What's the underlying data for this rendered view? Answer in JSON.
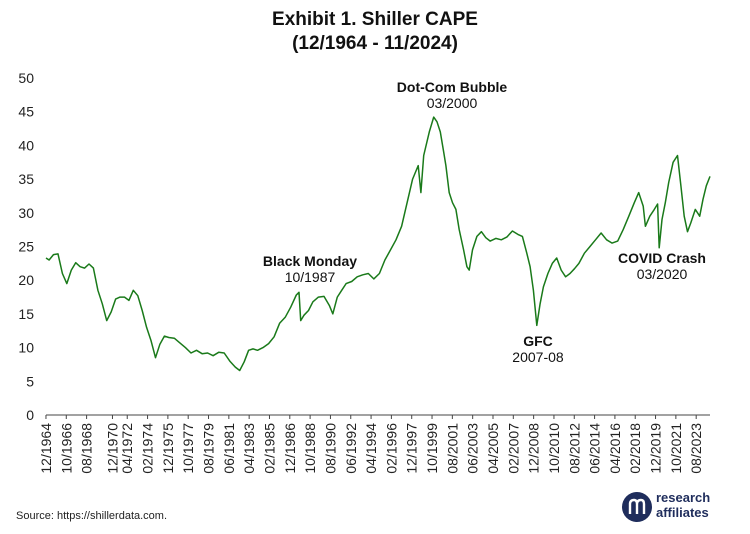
{
  "title_line1": "Exhibit 1. Shiller CAPE",
  "title_line2": "(12/1964 - 11/2024)",
  "source": "Source: https://shillerdata.com.",
  "logo": {
    "line1": "research",
    "line2": "affiliates",
    "mark": "ra-logo-icon",
    "color": "#1f2d5c"
  },
  "chart_data": {
    "type": "line",
    "title": "Exhibit 1. Shiller CAPE (12/1964 - 11/2024)",
    "xlabel": "",
    "ylabel": "",
    "ylim": [
      0,
      50
    ],
    "yticks": [
      0,
      5,
      10,
      15,
      20,
      25,
      30,
      35,
      40,
      45,
      50
    ],
    "xlim": [
      1964.92,
      2024.83
    ],
    "xtick_labels": [
      "12/1964",
      "10/1966",
      "08/1968",
      "12/1970",
      "04/1972",
      "02/1974",
      "12/1975",
      "10/1977",
      "08/1979",
      "06/1981",
      "04/1983",
      "02/1985",
      "12/1986",
      "10/1988",
      "08/1990",
      "06/1992",
      "04/1994",
      "02/1996",
      "12/1997",
      "10/1999",
      "08/2001",
      "06/2003",
      "04/2005",
      "02/2007",
      "12/2008",
      "10/2010",
      "08/2012",
      "06/2014",
      "04/2016",
      "02/2018",
      "12/2019",
      "10/2021",
      "08/2023"
    ],
    "grid": false,
    "line_color": "#1a7a1a",
    "series": [
      {
        "name": "Shiller CAPE",
        "x": [
          1964.92,
          1965.2,
          1965.6,
          1966.0,
          1966.4,
          1966.8,
          1967.2,
          1967.6,
          1968.0,
          1968.4,
          1968.8,
          1969.2,
          1969.6,
          1970.0,
          1970.4,
          1970.8,
          1971.2,
          1971.6,
          1972.0,
          1972.4,
          1972.8,
          1973.2,
          1973.6,
          1974.0,
          1974.4,
          1974.8,
          1975.2,
          1975.6,
          1976.0,
          1976.5,
          1977.0,
          1977.5,
          1978.0,
          1978.5,
          1979.0,
          1979.5,
          1980.0,
          1980.5,
          1981.0,
          1981.5,
          1982.0,
          1982.4,
          1982.8,
          1983.2,
          1983.6,
          1984.0,
          1984.5,
          1985.0,
          1985.5,
          1986.0,
          1986.5,
          1987.0,
          1987.5,
          1987.75,
          1987.9,
          1988.2,
          1988.6,
          1989.0,
          1989.5,
          1990.0,
          1990.5,
          1990.8,
          1991.2,
          1991.6,
          1992.0,
          1992.5,
          1993.0,
          1993.5,
          1994.0,
          1994.5,
          1995.0,
          1995.5,
          1996.0,
          1996.5,
          1997.0,
          1997.5,
          1998.0,
          1998.5,
          1998.75,
          1999.0,
          1999.5,
          1999.9,
          2000.2,
          2000.5,
          2000.8,
          2001.0,
          2001.3,
          2001.6,
          2001.9,
          2002.2,
          2002.6,
          2002.9,
          2003.1,
          2003.4,
          2003.8,
          2004.2,
          2004.6,
          2005.0,
          2005.5,
          2006.0,
          2006.5,
          2007.0,
          2007.5,
          2007.9,
          2008.3,
          2008.6,
          2008.9,
          2009.2,
          2009.5,
          2009.8,
          2010.2,
          2010.6,
          2011.0,
          2011.4,
          2011.8,
          2012.2,
          2012.6,
          2013.0,
          2013.5,
          2014.0,
          2014.5,
          2015.0,
          2015.5,
          2016.0,
          2016.5,
          2017.0,
          2017.5,
          2018.0,
          2018.4,
          2018.8,
          2019.0,
          2019.4,
          2019.8,
          2020.1,
          2020.25,
          2020.5,
          2020.8,
          2021.1,
          2021.5,
          2021.9,
          2022.2,
          2022.5,
          2022.8,
          2023.1,
          2023.5,
          2023.9,
          2024.2,
          2024.5,
          2024.83
        ],
        "values": [
          23.3,
          23.0,
          23.8,
          23.9,
          21.0,
          19.5,
          21.5,
          22.6,
          22.0,
          21.8,
          22.4,
          21.8,
          18.5,
          16.5,
          14.0,
          15.3,
          17.2,
          17.5,
          17.5,
          17.0,
          18.5,
          17.7,
          15.5,
          13.0,
          11.0,
          8.5,
          10.5,
          11.7,
          11.5,
          11.4,
          10.7,
          10.0,
          9.2,
          9.6,
          9.1,
          9.2,
          8.8,
          9.3,
          9.2,
          8.0,
          7.1,
          6.6,
          7.9,
          9.6,
          9.8,
          9.6,
          10.0,
          10.6,
          11.6,
          13.6,
          14.5,
          16.0,
          17.8,
          18.2,
          14.0,
          14.8,
          15.5,
          16.8,
          17.5,
          17.6,
          16.2,
          15.0,
          17.5,
          18.5,
          19.5,
          19.8,
          20.5,
          20.8,
          21.0,
          20.2,
          21.0,
          23.0,
          24.5,
          26.0,
          28.0,
          31.5,
          35.0,
          37.0,
          33.0,
          38.5,
          42.0,
          44.2,
          43.5,
          42.0,
          39.0,
          37.0,
          33.0,
          31.5,
          30.5,
          27.5,
          24.5,
          22.0,
          21.5,
          24.5,
          26.5,
          27.2,
          26.3,
          25.8,
          26.2,
          26.0,
          26.4,
          27.3,
          26.8,
          26.5,
          24.0,
          22.0,
          18.5,
          13.3,
          16.5,
          19.0,
          21.0,
          22.5,
          23.3,
          21.5,
          20.5,
          21.0,
          21.7,
          22.5,
          24.0,
          25.0,
          26.0,
          27.0,
          26.0,
          25.5,
          25.8,
          27.5,
          29.5,
          31.5,
          33.0,
          31.0,
          28.0,
          29.5,
          30.5,
          31.3,
          24.8,
          29.0,
          31.5,
          34.5,
          37.5,
          38.5,
          34.0,
          29.5,
          27.2,
          28.5,
          30.5,
          29.5,
          32.0,
          34.0,
          35.4
        ]
      }
    ],
    "annotations": [
      {
        "label": "Dot-Com Bubble",
        "sub": "03/2000"
      },
      {
        "label": "Black Monday",
        "sub": "10/1987"
      },
      {
        "label": "GFC",
        "sub": "2007-08"
      },
      {
        "label": "COVID Crash",
        "sub": "03/2020"
      }
    ]
  }
}
